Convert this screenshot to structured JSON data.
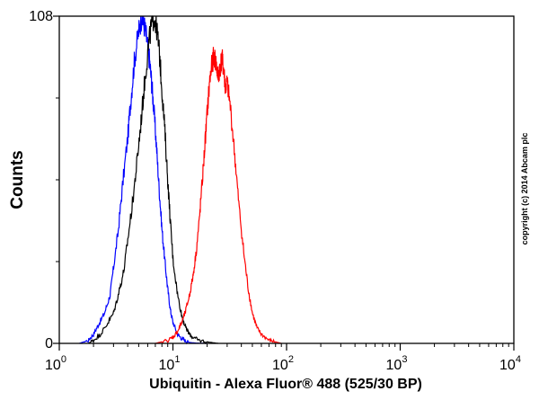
{
  "chart_data": {
    "type": "line",
    "xlabel": "Ubiquitin - Alexa Fluor® 488 (525/30 BP)",
    "ylabel": "Counts",
    "xscale": "log",
    "xlim": [
      1,
      10000
    ],
    "ylim": [
      0,
      108
    ],
    "x_tick_labels": [
      {
        "base": "10",
        "exp": "0"
      },
      {
        "base": "10",
        "exp": "1"
      },
      {
        "base": "10",
        "exp": "2"
      },
      {
        "base": "10",
        "exp": "3"
      },
      {
        "base": "10",
        "exp": "4"
      }
    ],
    "y_tick_labels": [
      "0",
      "108"
    ],
    "y_minor_ticks": [
      27,
      54,
      81
    ],
    "grid": false,
    "legend": "none",
    "copyright": "copyright (c) 2014 Abcam plc",
    "series": [
      {
        "color": "#0000ff",
        "x": [
          1.5,
          1.8,
          2.0,
          2.2,
          2.5,
          2.8,
          3.0,
          3.3,
          3.6,
          4.0,
          4.3,
          4.6,
          5.0,
          5.3,
          5.6,
          5.9,
          6.2,
          6.5,
          6.8,
          7.2,
          7.6,
          8.0,
          8.5,
          9.0,
          9.5,
          10.0,
          11.0,
          12.0,
          13.0,
          14.0,
          16.0,
          20.0
        ],
        "y": [
          0,
          1,
          3,
          6,
          10,
          16,
          25,
          37,
          52,
          68,
          82,
          94,
          103,
          108,
          105,
          100,
          94,
          86,
          77,
          64,
          50,
          38,
          27,
          18,
          11,
          7,
          3,
          1.5,
          0.8,
          0.3,
          0.1,
          0
        ]
      },
      {
        "color": "#000000",
        "x": [
          1.8,
          2.0,
          2.3,
          2.6,
          3.0,
          3.3,
          3.7,
          4.0,
          4.4,
          4.8,
          5.2,
          5.6,
          6.0,
          6.4,
          6.8,
          7.2,
          7.6,
          8.0,
          8.5,
          9.0,
          9.5,
          10.0,
          11.0,
          12.0,
          13.0,
          14.0,
          15.0,
          17.0,
          20.0,
          25.0
        ],
        "y": [
          0,
          1,
          3,
          6,
          10,
          16,
          24,
          34,
          46,
          59,
          72,
          85,
          96,
          104,
          108,
          104,
          96,
          84,
          70,
          54,
          40,
          28,
          16,
          9,
          5,
          3,
          2,
          1,
          0.5,
          0
        ]
      },
      {
        "color": "#ff0000",
        "x": [
          7,
          9,
          10,
          11,
          12,
          13,
          14,
          15,
          16,
          17,
          18,
          19,
          20,
          21,
          22,
          23,
          24,
          25,
          26,
          27,
          28,
          29,
          30,
          32,
          35,
          38,
          42,
          46,
          50,
          55,
          60,
          70,
          80,
          90
        ],
        "y": [
          0,
          1,
          2,
          4,
          7,
          11,
          16,
          22,
          30,
          40,
          52,
          64,
          76,
          86,
          92,
          95,
          92,
          88,
          91,
          94,
          90,
          84,
          86,
          78,
          62,
          46,
          30,
          18,
          10,
          5,
          3,
          1,
          0.5,
          0
        ]
      }
    ]
  }
}
